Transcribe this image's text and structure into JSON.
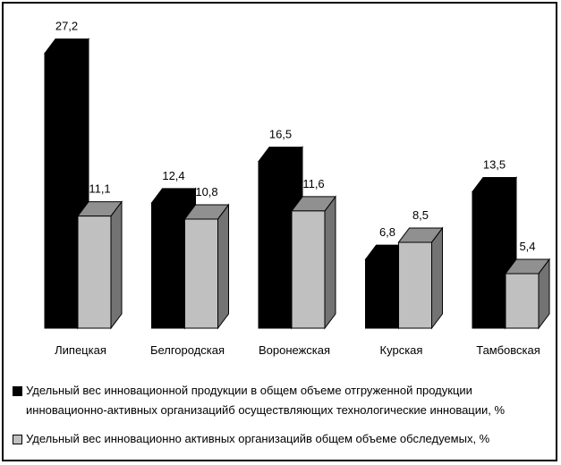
{
  "chart_data": {
    "type": "bar3d",
    "categories": [
      "Липецкая",
      "Белгородская",
      "Воронежская",
      "Курская",
      "Тамбовская"
    ],
    "series": [
      {
        "name": "Удельный вес инновационной продукции в общем объеме отгруженной продукции инновационно-активных организацийб осуществляющих технологические инновации, %",
        "color": "#000000",
        "values": [
          27.2,
          12.4,
          16.5,
          6.8,
          13.5
        ],
        "value_labels": [
          "27,2",
          "12,4",
          "16,5",
          "6,8",
          "13,5"
        ]
      },
      {
        "name": "Удельный вес инновационно активных организацийв общем объеме обследуемых, %",
        "color": "#c0c0c0",
        "values": [
          11.1,
          10.8,
          11.6,
          8.5,
          5.4
        ],
        "value_labels": [
          "11,1",
          "10,8",
          "11,6",
          "8,5",
          "5,4"
        ]
      }
    ],
    "legend": "bottom"
  }
}
